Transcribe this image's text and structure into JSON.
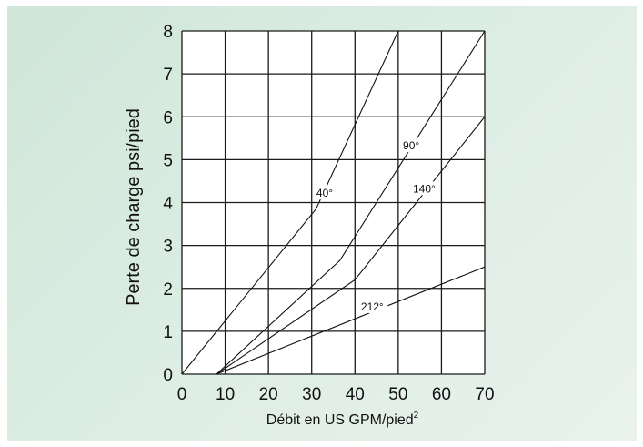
{
  "chart_data": {
    "type": "line",
    "title": "",
    "xlabel": "Débit en US GPM/pied",
    "xlabel_sup": "2",
    "ylabel": "Perte de charge psi/pied",
    "xlim": [
      0,
      70
    ],
    "ylim": [
      0,
      8
    ],
    "xticks": [
      0,
      10,
      20,
      30,
      40,
      50,
      60,
      70
    ],
    "yticks": [
      0,
      1,
      2,
      3,
      4,
      5,
      6,
      7,
      8
    ],
    "grid": true,
    "legend": "none",
    "series": [
      {
        "name": "40°",
        "x": [
          0,
          31,
          50
        ],
        "y": [
          0,
          3.85,
          8
        ],
        "label_at": [
          33,
          4.2
        ]
      },
      {
        "name": "90°",
        "x": [
          8,
          36.5,
          70
        ],
        "y": [
          0,
          2.65,
          8
        ],
        "label_at": [
          53,
          5.3
        ]
      },
      {
        "name": "140°",
        "x": [
          8,
          40,
          70
        ],
        "y": [
          0,
          2.2,
          6
        ],
        "label_at": [
          56,
          4.3
        ]
      },
      {
        "name": "212°",
        "x": [
          8,
          70
        ],
        "y": [
          0,
          2.5
        ],
        "label_at": [
          44,
          1.55
        ]
      }
    ]
  }
}
